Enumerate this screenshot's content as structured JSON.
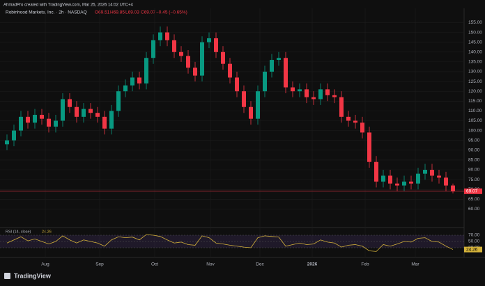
{
  "header": {
    "credit": "AhmadPro created with TradingView.com, Mar 25, 2026 14:02 UTC+4",
    "brand": "TradingView"
  },
  "chart_data": [
    {
      "type": "candlestick",
      "legend": {
        "symbol": "Robinhood Markets, Inc. · 2h · NASDAQ",
        "open": "O69.51",
        "high": "H69.85",
        "low": "L69.03",
        "close": "C69.07",
        "change": "−0.45 (−0.65%)"
      },
      "open": [
        93,
        95,
        100,
        107,
        104,
        108,
        106,
        102,
        105,
        116,
        112,
        107,
        111,
        109,
        107,
        101,
        110,
        120,
        123,
        127,
        124,
        137,
        146,
        150,
        146,
        140,
        138,
        132,
        128,
        145,
        147,
        140,
        134,
        127,
        120,
        112,
        106,
        120,
        130,
        136,
        137,
        122,
        120,
        121,
        117,
        116,
        121,
        118,
        117,
        107,
        105,
        104,
        99,
        84,
        74,
        77,
        73,
        72,
        74,
        73,
        78,
        80,
        77,
        76,
        72
      ],
      "high": [
        98,
        103,
        110,
        110,
        111,
        111,
        109,
        108,
        119,
        119,
        115,
        114,
        114,
        112,
        110,
        113,
        123,
        126,
        130,
        130,
        140,
        149,
        153,
        153,
        149,
        143,
        141,
        135,
        148,
        150,
        150,
        143,
        137,
        130,
        123,
        115,
        123,
        133,
        139,
        140,
        140,
        125,
        124,
        124,
        120,
        124,
        124,
        121,
        120,
        110,
        108,
        107,
        102,
        87,
        80,
        80,
        76,
        77,
        77,
        81,
        83,
        83,
        80,
        79,
        73
      ],
      "low": [
        90,
        92,
        97,
        101,
        101,
        103,
        99,
        99,
        102,
        109,
        104,
        104,
        106,
        104,
        98,
        98,
        107,
        117,
        120,
        121,
        121,
        134,
        143,
        143,
        137,
        135,
        129,
        125,
        125,
        142,
        137,
        131,
        124,
        117,
        109,
        103,
        103,
        117,
        127,
        133,
        119,
        117,
        117,
        114,
        113,
        113,
        115,
        114,
        104,
        102,
        101,
        96,
        81,
        71,
        71,
        70,
        69,
        69,
        70,
        70,
        75,
        74,
        73,
        69,
        68
      ],
      "close": [
        95,
        100,
        107,
        104,
        108,
        106,
        102,
        105,
        116,
        112,
        107,
        111,
        109,
        107,
        101,
        110,
        120,
        123,
        127,
        124,
        137,
        146,
        150,
        146,
        140,
        138,
        132,
        128,
        145,
        147,
        140,
        134,
        127,
        120,
        112,
        106,
        120,
        130,
        136,
        137,
        122,
        120,
        121,
        117,
        116,
        121,
        118,
        117,
        107,
        105,
        104,
        99,
        84,
        74,
        77,
        73,
        72,
        74,
        73,
        78,
        80,
        77,
        76,
        72,
        69.07
      ],
      "up_color": "#089981",
      "down_color": "#f23645",
      "xlim": [
        0,
        65
      ],
      "xticks": [
        {
          "value": 6,
          "label": "Aug"
        },
        {
          "value": 13.8,
          "label": "Sep"
        },
        {
          "value": 21.7,
          "label": "Oct"
        },
        {
          "value": 29.7,
          "label": "Nov"
        },
        {
          "value": 36.8,
          "label": "Dec"
        },
        {
          "value": 44.3,
          "label": "2026"
        },
        {
          "value": 51.9,
          "label": "Feb"
        },
        {
          "value": 59.1,
          "label": "Mar"
        }
      ],
      "ylim": [
        56.6,
        158
      ],
      "yticks": [
        {
          "value": 60,
          "label": "60.00"
        },
        {
          "value": 65,
          "label": "65.00"
        },
        {
          "value": 70,
          "label": "70.00"
        },
        {
          "value": 75,
          "label": "75.00"
        },
        {
          "value": 80,
          "label": "80.00"
        },
        {
          "value": 85,
          "label": "85.00"
        },
        {
          "value": 90,
          "label": "90.00"
        },
        {
          "value": 95,
          "label": "95.00"
        },
        {
          "value": 100,
          "label": "100.00"
        },
        {
          "value": 105,
          "label": "105.00"
        },
        {
          "value": 110,
          "label": "110.00"
        },
        {
          "value": 115,
          "label": "115.00"
        },
        {
          "value": 120,
          "label": "120.00"
        },
        {
          "value": 125,
          "label": "125.00"
        },
        {
          "value": 130,
          "label": "130.00"
        },
        {
          "value": 135,
          "label": "135.00"
        },
        {
          "value": 140,
          "label": "140.00"
        },
        {
          "value": 145,
          "label": "145.00"
        },
        {
          "value": 150,
          "label": "150.00"
        },
        {
          "value": 155,
          "label": "155.00"
        }
      ],
      "last_price": {
        "value": 69.07,
        "label": "69.07",
        "color": "#f23645"
      }
    },
    {
      "type": "line",
      "title": "RSI (14, close)",
      "value_label": "24.26",
      "color": "#d4b23a",
      "band_color": "#7e57c2",
      "values": [
        45,
        55,
        65,
        52,
        58,
        50,
        42,
        50,
        68,
        55,
        45,
        55,
        50,
        45,
        35,
        55,
        65,
        62,
        64,
        55,
        72,
        70,
        66,
        55,
        45,
        48,
        40,
        38,
        68,
        62,
        45,
        42,
        38,
        35,
        32,
        30,
        62,
        68,
        66,
        64,
        35,
        40,
        45,
        40,
        42,
        55,
        48,
        45,
        32,
        38,
        40,
        35,
        20,
        18,
        40,
        35,
        42,
        50,
        48,
        60,
        62,
        50,
        48,
        35,
        24.26
      ],
      "ylim": [
        12.2,
        87.8
      ],
      "yticks": [
        {
          "value": 30,
          "label": "30.00"
        },
        {
          "value": 50,
          "label": "50.00"
        },
        {
          "value": 70,
          "label": "70.00"
        }
      ]
    }
  ]
}
